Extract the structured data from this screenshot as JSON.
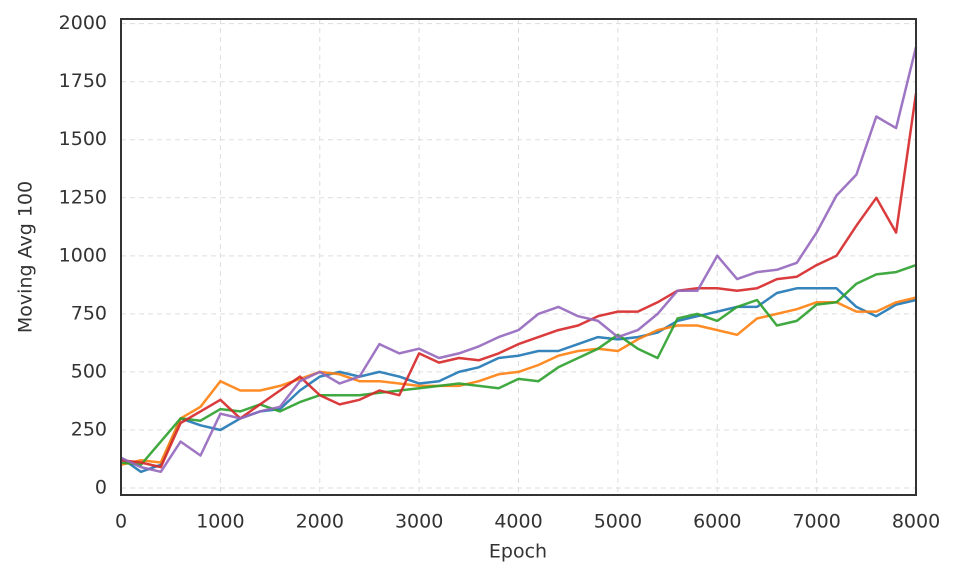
{
  "chart_data": {
    "type": "line",
    "xlabel": "Epoch",
    "ylabel": "Moving Avg 100",
    "x": [
      0,
      200,
      400,
      600,
      800,
      1000,
      1200,
      1400,
      1600,
      1800,
      2000,
      2200,
      2400,
      2600,
      2800,
      3000,
      3200,
      3400,
      3600,
      3800,
      4000,
      4200,
      4400,
      4600,
      4800,
      5000,
      5200,
      5400,
      5600,
      5800,
      6000,
      6200,
      6400,
      6600,
      6800,
      7000,
      7200,
      7400,
      7600,
      7800,
      8000
    ],
    "series": [
      {
        "color": "#1f77b4",
        "values": [
          130,
          70,
          100,
          300,
          270,
          250,
          300,
          330,
          340,
          420,
          480,
          500,
          480,
          500,
          480,
          450,
          460,
          500,
          520,
          560,
          570,
          590,
          590,
          620,
          650,
          640,
          650,
          670,
          720,
          740,
          760,
          780,
          780,
          840,
          860,
          860,
          860,
          780,
          740,
          790,
          810
        ]
      },
      {
        "color": "#ff7f0e",
        "values": [
          100,
          120,
          110,
          300,
          350,
          460,
          420,
          420,
          440,
          470,
          500,
          490,
          460,
          460,
          450,
          440,
          440,
          440,
          460,
          490,
          500,
          530,
          570,
          590,
          600,
          590,
          640,
          680,
          700,
          700,
          680,
          660,
          730,
          750,
          770,
          800,
          800,
          760,
          760,
          800,
          820
        ]
      },
      {
        "color": "#2ca02c",
        "values": [
          110,
          100,
          200,
          300,
          290,
          340,
          330,
          360,
          330,
          370,
          400,
          400,
          400,
          410,
          420,
          430,
          440,
          450,
          440,
          430,
          470,
          460,
          520,
          560,
          600,
          660,
          600,
          560,
          730,
          750,
          720,
          780,
          810,
          700,
          720,
          790,
          800,
          880,
          920,
          930,
          960
        ]
      },
      {
        "color": "#d62728",
        "values": [
          120,
          110,
          90,
          280,
          330,
          380,
          300,
          360,
          420,
          480,
          400,
          360,
          380,
          420,
          400,
          580,
          540,
          560,
          550,
          580,
          620,
          650,
          680,
          700,
          740,
          760,
          760,
          800,
          850,
          860,
          860,
          850,
          860,
          900,
          910,
          960,
          1000,
          1130,
          1250,
          1100,
          1700
        ]
      },
      {
        "color": "#9467bd",
        "values": [
          130,
          90,
          70,
          200,
          140,
          320,
          300,
          330,
          350,
          460,
          500,
          450,
          480,
          620,
          580,
          600,
          560,
          580,
          610,
          650,
          680,
          750,
          780,
          740,
          720,
          650,
          680,
          750,
          850,
          850,
          1000,
          900,
          930,
          940,
          970,
          1100,
          1260,
          1350,
          1600,
          1550,
          1900
        ]
      }
    ],
    "xlim": [
      0,
      8000
    ],
    "ylim": [
      -30,
      2020
    ],
    "xticks": [
      0,
      1000,
      2000,
      3000,
      4000,
      5000,
      6000,
      7000,
      8000
    ],
    "yticks": [
      0,
      250,
      500,
      750,
      1000,
      1250,
      1500,
      1750,
      2000
    ],
    "grid": true
  }
}
